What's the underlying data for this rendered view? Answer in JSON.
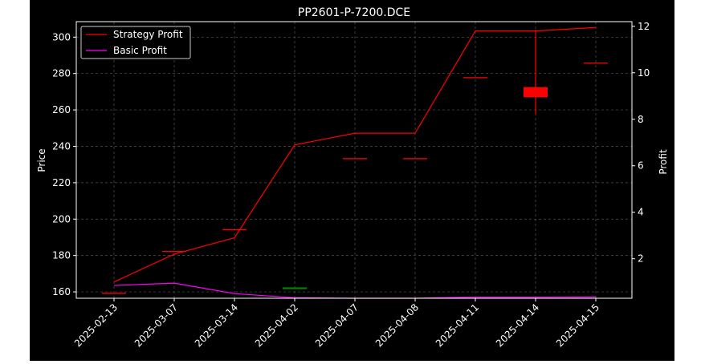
{
  "chart_data": {
    "type": "candlestick",
    "title": "PP2601-P-7200.DCE",
    "categories": [
      "2025-02-13",
      "2025-03-07",
      "2025-03-14",
      "2025-04-02",
      "2025-04-07",
      "2025-04-08",
      "2025-04-11",
      "2025-04-14",
      "2025-04-15"
    ],
    "ylabel_left": "Price",
    "ylabel_right": "Profit",
    "ylim_left": [
      156.5,
      308.5
    ],
    "ylim_right": [
      0.3,
      12.2
    ],
    "yticks_left": [
      160,
      180,
      200,
      220,
      240,
      260,
      280,
      300
    ],
    "yticks_right": [
      2,
      4,
      6,
      8,
      10,
      12
    ],
    "grid": true,
    "legend_position": "upper-left",
    "candles": [
      {
        "date": "2025-02-13",
        "open": 159.5,
        "high": 159.5,
        "low": 159.5,
        "close": 159.5
      },
      {
        "date": "2025-03-07",
        "open": 182.5,
        "high": 182.5,
        "low": 182.5,
        "close": 182.5
      },
      {
        "date": "2025-03-14",
        "open": 194.5,
        "high": 194.5,
        "low": 194.5,
        "close": 194.5
      },
      {
        "date": "2025-04-02",
        "open": 162.5,
        "high": 162.5,
        "low": 161.5,
        "close": 161.5
      },
      {
        "date": "2025-04-07",
        "open": 233.5,
        "high": 233.5,
        "low": 233.5,
        "close": 233.5
      },
      {
        "date": "2025-04-08",
        "open": 233.5,
        "high": 233.5,
        "low": 233.5,
        "close": 233.5
      },
      {
        "date": "2025-04-11",
        "open": 278.0,
        "high": 278.0,
        "low": 278.0,
        "close": 278.0
      },
      {
        "date": "2025-04-14",
        "open": 267.0,
        "high": 304.0,
        "low": 257.5,
        "close": 272.5
      },
      {
        "date": "2025-04-15",
        "open": 286.0,
        "high": 286.0,
        "low": 286.0,
        "close": 286.0
      }
    ],
    "series": [
      {
        "name": "Strategy Profit",
        "color": "#ff0000",
        "axis": "right",
        "values": [
          1.0,
          2.2,
          2.9,
          6.9,
          7.4,
          7.4,
          11.8,
          11.8,
          11.95
        ]
      },
      {
        "name": "Basic Profit",
        "color": "#ff00ff",
        "axis": "right",
        "values": [
          0.85,
          0.95,
          0.5,
          0.32,
          0.3,
          0.3,
          0.35,
          0.35,
          0.36
        ]
      }
    ],
    "colors": {
      "up": "#ff0000",
      "down": "#008000",
      "background": "#000000",
      "text": "#ffffff",
      "grid": "#555555"
    }
  }
}
